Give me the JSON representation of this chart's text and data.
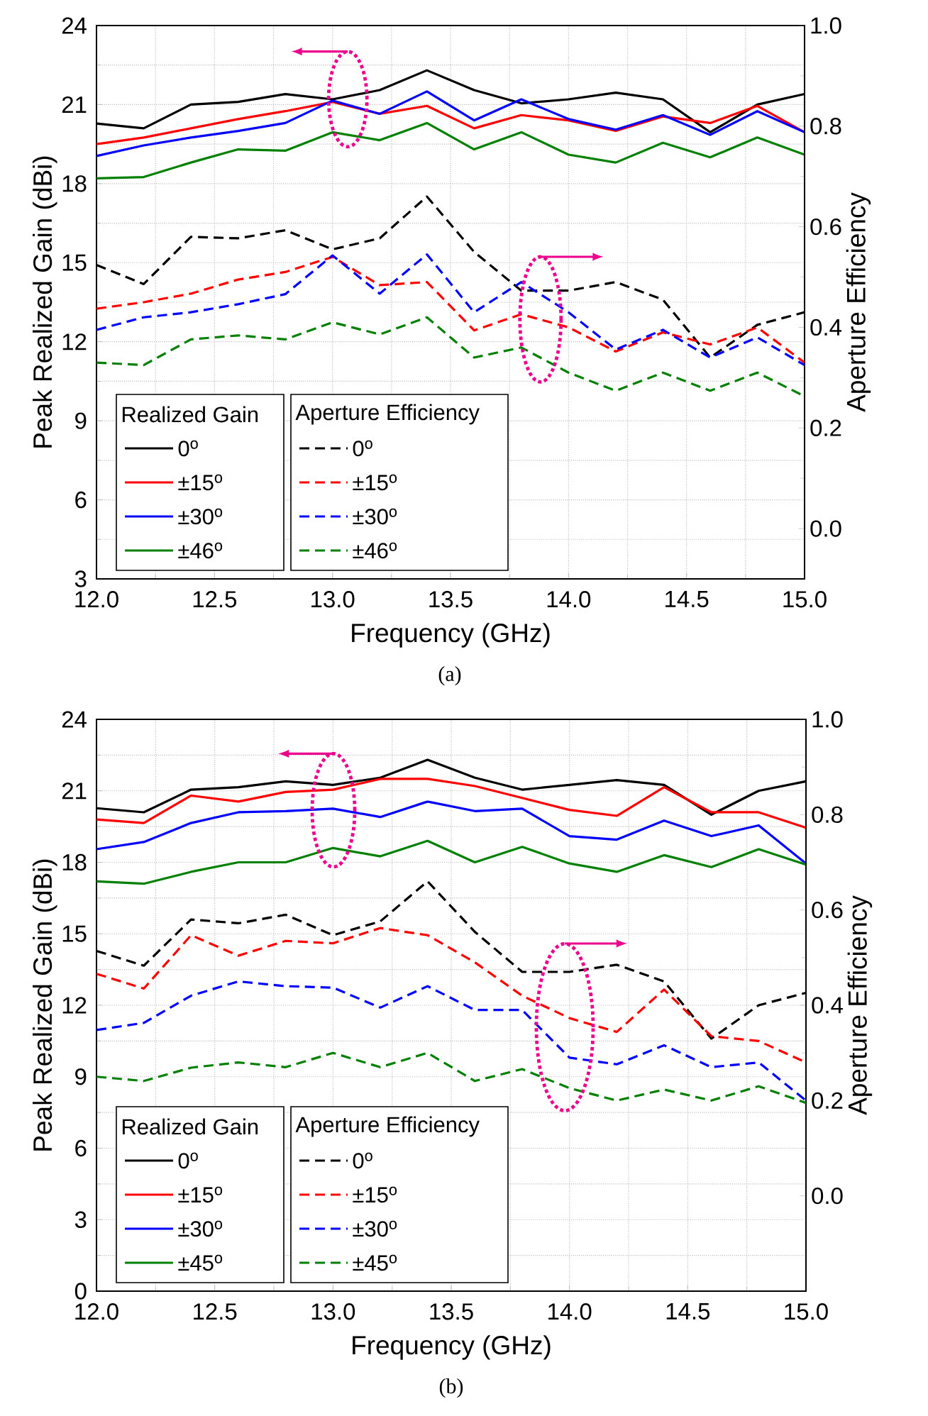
{
  "chart_data": [
    {
      "type": "line",
      "xlabel": "Frequency (GHz)",
      "ylabel": "Peak Realized Gain (dBi)",
      "y2label": "Aperture Efficiency",
      "annotations": [
        "Realized Gain",
        "Aperture Efficiency",
        "(a)"
      ],
      "x": [
        12.0,
        12.2,
        12.4,
        12.6,
        12.8,
        13.0,
        13.2,
        13.4,
        13.6,
        13.8,
        14.0,
        14.2,
        14.4,
        14.6,
        14.8,
        15.0
      ],
      "xlim": [
        12.0,
        15.0
      ],
      "xticks": [
        {
          "value": 12.0,
          "label": "12.0"
        },
        {
          "value": 12.5,
          "label": "12.5"
        },
        {
          "value": 13.0,
          "label": "13.0"
        },
        {
          "value": 13.5,
          "label": "13.5"
        },
        {
          "value": 14.0,
          "label": "14.0"
        },
        {
          "value": 14.5,
          "label": "14.5"
        },
        {
          "value": 15.0,
          "label": "15.0"
        }
      ],
      "ylim": [
        3,
        24
      ],
      "yticks": [
        3,
        6,
        9,
        12,
        15,
        18,
        21,
        24
      ],
      "y2lim": [
        -0.1,
        1.0
      ],
      "y2ticks": [
        {
          "value": 0.0,
          "label": "0.0"
        },
        {
          "value": 0.2,
          "label": "0.2"
        },
        {
          "value": 0.4,
          "label": "0.4"
        },
        {
          "value": 0.6,
          "label": "0.6"
        },
        {
          "value": 0.8,
          "label": "0.8"
        },
        {
          "value": 1.0,
          "label": "1.0"
        }
      ],
      "grid": true,
      "legend": "bottom left",
      "series": [
        {
          "name": "0$^{o}$",
          "color": "#000000",
          "line_style": "solid",
          "values": [
            20.28,
            20.1,
            21.0,
            21.1,
            21.4,
            21.2,
            21.55,
            22.3,
            21.55,
            21.05,
            21.2,
            21.45,
            21.2,
            19.95,
            21.0,
            21.4
          ]
        },
        {
          "name": "±15$^{o}$",
          "color": "#ff0000",
          "line_style": "solid",
          "values": [
            19.5,
            19.75,
            20.1,
            20.45,
            20.75,
            21.1,
            20.65,
            20.95,
            20.1,
            20.6,
            20.4,
            20.0,
            20.55,
            20.3,
            20.95,
            19.95
          ]
        },
        {
          "name": "±30$^{o}$",
          "color": "#0000ff",
          "line_style": "solid",
          "values": [
            19.05,
            19.45,
            19.75,
            20.0,
            20.3,
            21.15,
            20.65,
            21.5,
            20.4,
            21.2,
            20.45,
            20.05,
            20.6,
            19.85,
            20.75,
            19.95
          ]
        },
        {
          "name": "±46$^{o}$",
          "color": "#008000",
          "line_style": "solid",
          "values": [
            18.2,
            18.25,
            18.8,
            19.3,
            19.25,
            19.95,
            19.65,
            20.3,
            19.3,
            19.95,
            19.1,
            18.8,
            19.55,
            19.0,
            19.75,
            19.1
          ]
        },
        {
          "name": "0$^{o}$",
          "color": "#000000",
          "line_style": "dashed",
          "axis": "y2",
          "values": [
            0.524,
            0.486,
            0.58,
            0.577,
            0.593,
            0.555,
            0.577,
            0.66,
            0.55,
            0.473,
            0.473,
            0.49,
            0.455,
            0.34,
            0.405,
            0.43
          ]
        },
        {
          "name": "±15$^{o}$",
          "color": "#ff0000",
          "line_style": "dashed",
          "axis": "y2",
          "values": [
            0.437,
            0.45,
            0.467,
            0.495,
            0.51,
            0.54,
            0.484,
            0.49,
            0.394,
            0.426,
            0.4,
            0.352,
            0.39,
            0.366,
            0.4,
            0.33
          ]
        },
        {
          "name": "±30$^{o}$",
          "color": "#0000ff",
          "line_style": "dashed",
          "axis": "y2",
          "values": [
            0.395,
            0.42,
            0.43,
            0.446,
            0.466,
            0.543,
            0.467,
            0.545,
            0.43,
            0.49,
            0.43,
            0.356,
            0.395,
            0.34,
            0.38,
            0.325
          ]
        },
        {
          "name": "±46$^{o}$",
          "color": "#008000",
          "line_style": "dashed",
          "axis": "y2",
          "values": [
            0.33,
            0.325,
            0.376,
            0.384,
            0.376,
            0.41,
            0.386,
            0.42,
            0.34,
            0.36,
            0.31,
            0.274,
            0.31,
            0.274,
            0.31,
            0.263
          ]
        }
      ]
    },
    {
      "type": "line",
      "xlabel": "Frequency (GHz)",
      "ylabel": "Peak Realized Gain (dBi)",
      "y2label": "Aperture Efficiency",
      "annotations": [
        "Realized Gain",
        "Aperture Efficiency",
        "(b)"
      ],
      "x": [
        12.0,
        12.2,
        12.4,
        12.6,
        12.8,
        13.0,
        13.2,
        13.4,
        13.6,
        13.8,
        14.0,
        14.2,
        14.4,
        14.6,
        14.8,
        15.0
      ],
      "xlim": [
        12.0,
        15.0
      ],
      "xticks": [
        {
          "value": 12.0,
          "label": "12.0"
        },
        {
          "value": 12.5,
          "label": "12.5"
        },
        {
          "value": 13.0,
          "label": "13.0"
        },
        {
          "value": 13.5,
          "label": "13.5"
        },
        {
          "value": 14.0,
          "label": "14.0"
        },
        {
          "value": 14.5,
          "label": "14.5"
        },
        {
          "value": 15.0,
          "label": "15.0"
        }
      ],
      "ylim": [
        0,
        24
      ],
      "yticks": [
        0,
        3,
        6,
        9,
        12,
        15,
        18,
        21,
        24
      ],
      "y2lim": [
        -0.2,
        1.0
      ],
      "y2ticks": [
        {
          "value": 0.0,
          "label": "0.0"
        },
        {
          "value": 0.2,
          "label": "0.2"
        },
        {
          "value": 0.4,
          "label": "0.4"
        },
        {
          "value": 0.6,
          "label": "0.6"
        },
        {
          "value": 0.8,
          "label": "0.8"
        },
        {
          "value": 1.0,
          "label": "1.0"
        }
      ],
      "grid": true,
      "legend": "bottom left",
      "series": [
        {
          "name": "0$^{o}$",
          "color": "#000000",
          "line_style": "solid",
          "values": [
            20.27,
            20.1,
            21.05,
            21.15,
            21.4,
            21.25,
            21.55,
            22.3,
            21.55,
            21.05,
            21.25,
            21.45,
            21.25,
            20.0,
            21.0,
            21.4
          ]
        },
        {
          "name": "±15$^{o}$",
          "color": "#ff0000",
          "line_style": "solid",
          "values": [
            19.8,
            19.65,
            20.8,
            20.55,
            20.95,
            21.05,
            21.5,
            21.5,
            21.2,
            20.7,
            20.2,
            19.95,
            21.15,
            20.1,
            20.1,
            19.45
          ]
        },
        {
          "name": "±30$^{o}$",
          "color": "#0000ff",
          "line_style": "solid",
          "values": [
            18.55,
            18.85,
            19.65,
            20.1,
            20.15,
            20.25,
            19.9,
            20.55,
            20.15,
            20.25,
            19.1,
            18.95,
            19.75,
            19.1,
            19.55,
            17.95
          ]
        },
        {
          "name": "±45$^{o}$",
          "color": "#008000",
          "line_style": "solid",
          "values": [
            17.2,
            17.1,
            17.6,
            18.0,
            18.0,
            18.6,
            18.25,
            18.9,
            18.0,
            18.65,
            17.95,
            17.6,
            18.3,
            17.8,
            18.55,
            17.9
          ]
        },
        {
          "name": "0$^{o}$",
          "color": "#000000",
          "line_style": "dashed",
          "axis": "y2",
          "values": [
            0.514,
            0.483,
            0.58,
            0.572,
            0.59,
            0.547,
            0.576,
            0.66,
            0.554,
            0.47,
            0.47,
            0.485,
            0.45,
            0.33,
            0.4,
            0.426
          ]
        },
        {
          "name": "±15$^{o}$",
          "color": "#ff0000",
          "line_style": "dashed",
          "axis": "y2",
          "values": [
            0.466,
            0.435,
            0.547,
            0.504,
            0.535,
            0.53,
            0.562,
            0.547,
            0.49,
            0.42,
            0.373,
            0.344,
            0.433,
            0.335,
            0.325,
            0.28
          ]
        },
        {
          "name": "±30$^{o}$",
          "color": "#0000ff",
          "line_style": "dashed",
          "axis": "y2",
          "values": [
            0.348,
            0.363,
            0.42,
            0.45,
            0.44,
            0.437,
            0.395,
            0.44,
            0.39,
            0.39,
            0.29,
            0.276,
            0.316,
            0.27,
            0.28,
            0.2
          ]
        },
        {
          "name": "±45$^{o}$",
          "color": "#008000",
          "line_style": "dashed",
          "axis": "y2",
          "values": [
            0.25,
            0.241,
            0.269,
            0.28,
            0.27,
            0.3,
            0.27,
            0.3,
            0.241,
            0.266,
            0.226,
            0.2,
            0.223,
            0.2,
            0.23,
            0.195
          ]
        }
      ]
    }
  ]
}
